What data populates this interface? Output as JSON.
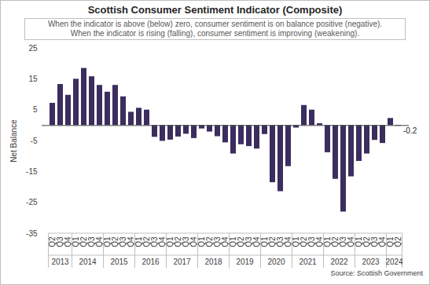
{
  "chart_data": {
    "type": "bar",
    "title": "Scottish Consumer Sentiment Indicator (Composite)",
    "subtitle": [
      "When the indicator is above (below) zero, consumer sentiment is on balance positive (negative).",
      "When the indicator is rising (falling), consumer sentiment is improving (weakening)."
    ],
    "y_label": "Net Balance",
    "source": "Source: Scottish Government",
    "categories": [
      "Q2",
      "Q3",
      "Q4",
      "Q1",
      "Q2",
      "Q3",
      "Q4",
      "Q1",
      "Q2",
      "Q3",
      "Q4",
      "Q1",
      "Q2",
      "Q3",
      "Q4",
      "Q1",
      "Q2",
      "Q3",
      "Q4",
      "Q1",
      "Q2",
      "Q3",
      "Q4",
      "Q1",
      "Q2",
      "Q3",
      "Q4",
      "Q1",
      "Q2",
      "Q3",
      "Q4",
      "Q1",
      "Q2",
      "Q3",
      "Q4",
      "Q1",
      "Q2",
      "Q3",
      "Q4",
      "Q1",
      "Q2",
      "Q3",
      "Q4",
      "Q1",
      "Q2"
    ],
    "year_groups": [
      {
        "label": "2013",
        "count": 3
      },
      {
        "label": "2014",
        "count": 4
      },
      {
        "label": "2015",
        "count": 4
      },
      {
        "label": "2016",
        "count": 4
      },
      {
        "label": "2017",
        "count": 4
      },
      {
        "label": "2018",
        "count": 4
      },
      {
        "label": "2019",
        "count": 4
      },
      {
        "label": "2020",
        "count": 4
      },
      {
        "label": "2021",
        "count": 4
      },
      {
        "label": "2022",
        "count": 4
      },
      {
        "label": "2023",
        "count": 4
      },
      {
        "label": "2024",
        "count": 2
      }
    ],
    "values": [
      7.2,
      13.3,
      9.8,
      15,
      18.5,
      15.8,
      13,
      10.8,
      13,
      9.3,
      4.3,
      5.6,
      5,
      -3.8,
      -5.1,
      -4.7,
      -3.7,
      -2.8,
      -4.2,
      -1.1,
      -2.1,
      -3.6,
      -5.6,
      -9.2,
      -6.2,
      -6.8,
      -7.6,
      -2.9,
      -18.5,
      -21.4,
      -13.3,
      -0.8,
      6.5,
      5,
      0.6,
      -8.8,
      -17.4,
      -28,
      -16.6,
      -11.6,
      -9.2,
      -4.8,
      -5.8,
      2.3,
      -0.2
    ],
    "value_labels": [
      null,
      null,
      null,
      null,
      null,
      null,
      null,
      null,
      null,
      null,
      null,
      null,
      null,
      null,
      null,
      null,
      null,
      null,
      null,
      null,
      null,
      null,
      null,
      null,
      null,
      null,
      null,
      null,
      null,
      null,
      null,
      null,
      null,
      null,
      null,
      null,
      null,
      null,
      null,
      null,
      null,
      null,
      null,
      null,
      "-0.2"
    ],
    "color": "#3b2d5e",
    "ylim": [
      -35,
      25
    ],
    "yticks": [
      -35,
      -25,
      -15,
      -5,
      5,
      15,
      25
    ],
    "grid": false
  }
}
